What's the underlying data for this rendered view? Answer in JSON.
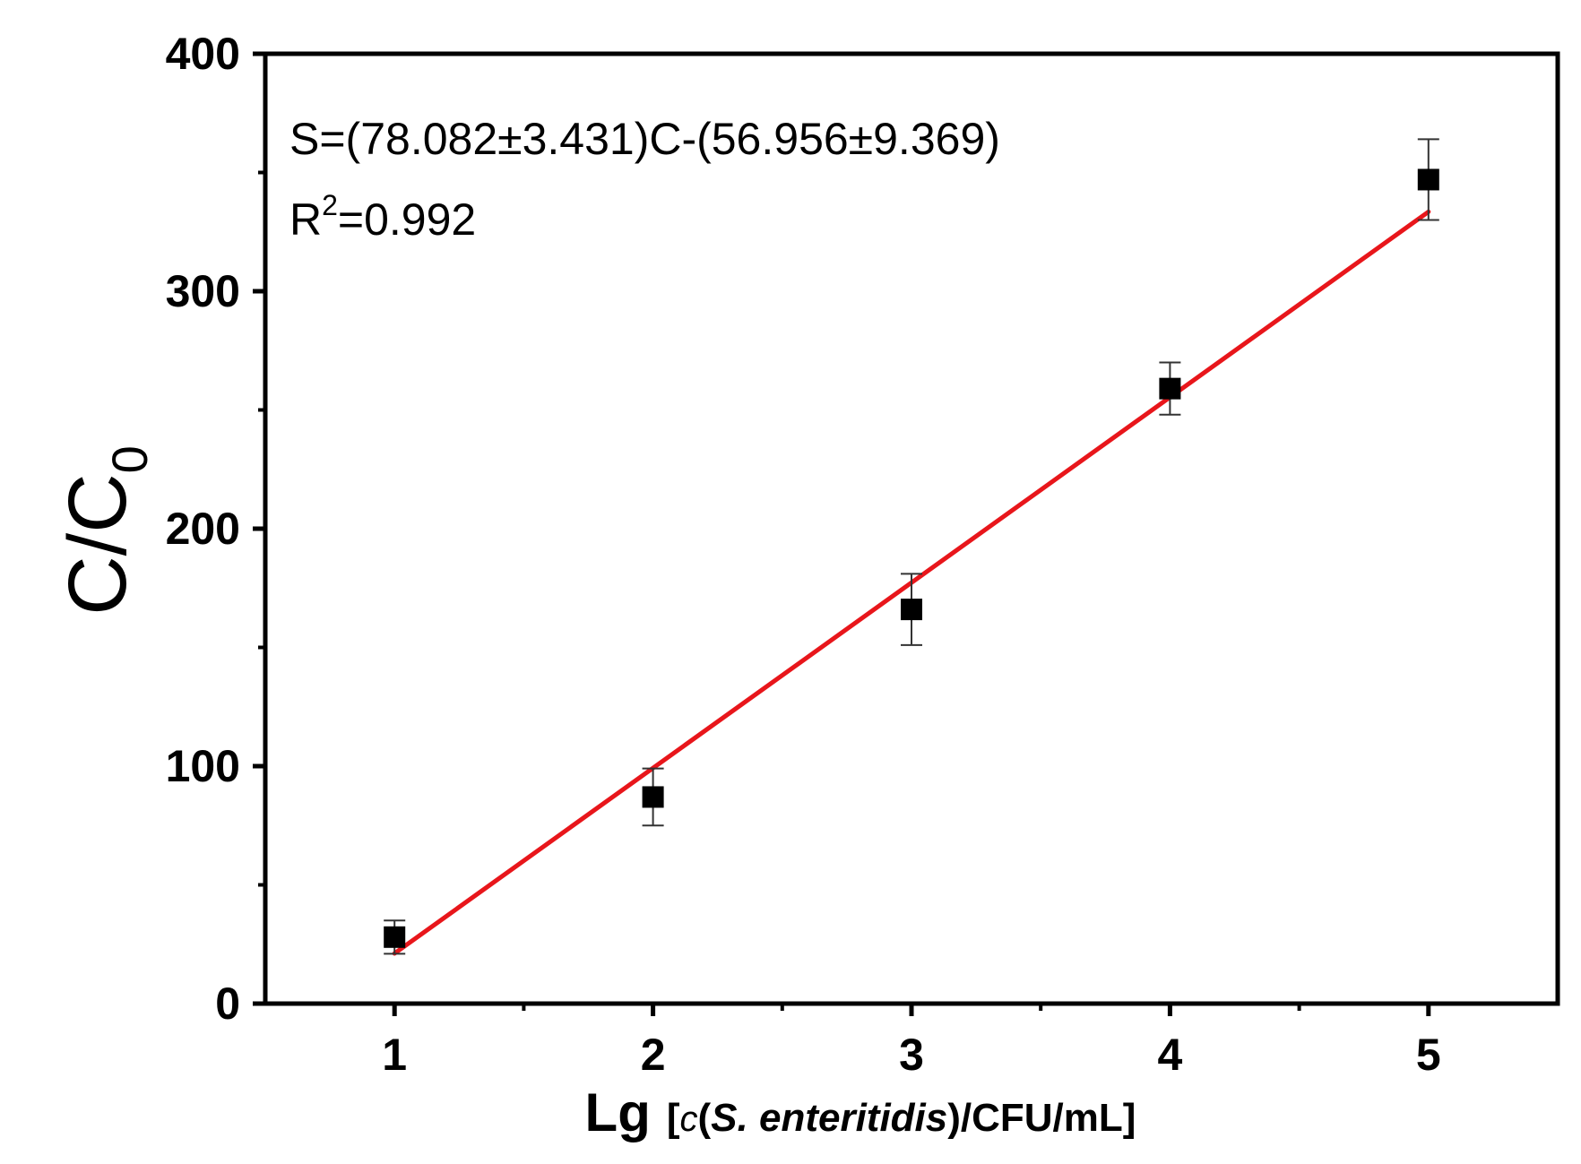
{
  "chart_data": {
    "type": "scatter",
    "xlabel": {
      "prefix": "Lg",
      "open": "[",
      "c": "c",
      "paren_open": "(",
      "species": "S. enteritidis",
      "paren_close": ")",
      "unit": "/CFU/mL",
      "close": "]"
    },
    "ylabel": {
      "main": "C/C",
      "sub": "0"
    },
    "xlim": [
      0.5,
      5.5
    ],
    "ylim": [
      0,
      400
    ],
    "x_ticks": [
      "1",
      "2",
      "3",
      "4",
      "5"
    ],
    "y_ticks": [
      "0",
      "100",
      "200",
      "300",
      "400"
    ],
    "series": [
      {
        "marker": "square",
        "color": "#000000",
        "x": [
          1,
          2,
          3,
          4,
          5
        ],
        "y": [
          28,
          87,
          166,
          259,
          347
        ],
        "y_error": [
          7,
          12,
          15,
          11,
          17
        ]
      }
    ],
    "fit": {
      "color": "#e8161b",
      "x_range": [
        1,
        5
      ],
      "slope": 78.082,
      "intercept": -56.956
    },
    "annotations": {
      "equation": "S=(78.082±3.431)C-(56.956±9.369)",
      "r2_prefix": "R",
      "r2_sup": "2",
      "r2_value": "=0.992"
    },
    "grid": false
  }
}
